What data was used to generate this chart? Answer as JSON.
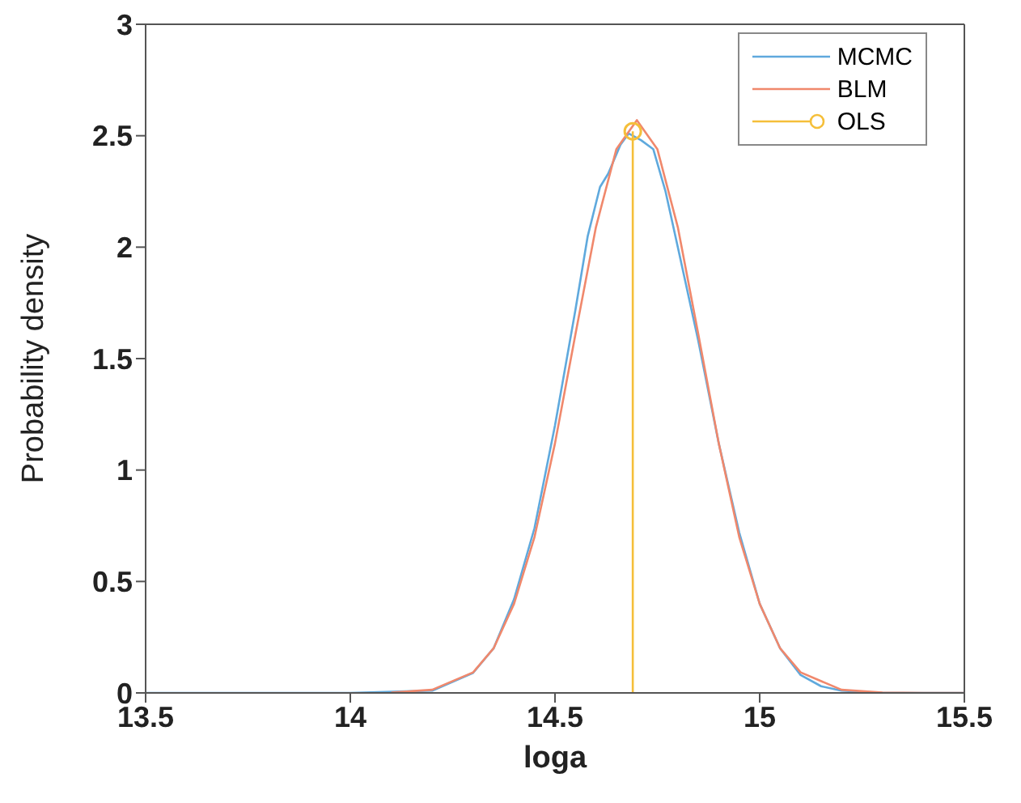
{
  "chart_data": {
    "type": "line",
    "xlabel": "loga",
    "ylabel": "Probability density",
    "xlim": [
      13.5,
      15.5
    ],
    "xticks": [
      13.5,
      14,
      14.5,
      15,
      15.5
    ],
    "ylim": [
      0,
      3
    ],
    "yticks": [
      0,
      0.5,
      1,
      1.5,
      2,
      2.5,
      3
    ],
    "legend": "top right",
    "series": [
      {
        "name": "MCMC",
        "color": "#5fa9dd",
        "x": [
          13.5,
          14.0,
          14.2,
          14.3,
          14.35,
          14.4,
          14.45,
          14.5,
          14.55,
          14.58,
          14.61,
          14.63,
          14.66,
          14.68,
          14.71,
          14.74,
          14.77,
          14.8,
          14.85,
          14.9,
          14.95,
          15.0,
          15.05,
          15.1,
          15.15,
          15.2,
          15.3,
          15.5
        ],
        "values": [
          0,
          0,
          0.01,
          0.09,
          0.2,
          0.42,
          0.74,
          1.2,
          1.72,
          2.05,
          2.27,
          2.33,
          2.46,
          2.51,
          2.48,
          2.44,
          2.25,
          2.0,
          1.58,
          1.12,
          0.72,
          0.4,
          0.2,
          0.08,
          0.03,
          0.01,
          0,
          0
        ]
      },
      {
        "name": "BLM",
        "color": "#f0886c",
        "x": [
          14.1,
          14.2,
          14.3,
          14.35,
          14.4,
          14.45,
          14.5,
          14.55,
          14.6,
          14.65,
          14.7,
          14.75,
          14.8,
          14.85,
          14.9,
          14.95,
          15.0,
          15.05,
          15.1,
          15.2,
          15.3,
          15.4,
          15.5
        ],
        "values": [
          0.002,
          0.014,
          0.092,
          0.2,
          0.4,
          0.7,
          1.12,
          1.61,
          2.09,
          2.44,
          2.57,
          2.44,
          2.09,
          1.61,
          1.12,
          0.7,
          0.4,
          0.2,
          0.092,
          0.014,
          0.002,
          0,
          0
        ]
      },
      {
        "name": "OLS",
        "color": "#f5bf3a",
        "marker": "circle",
        "x": [
          14.69,
          14.69
        ],
        "values": [
          0,
          2.52
        ]
      }
    ]
  }
}
